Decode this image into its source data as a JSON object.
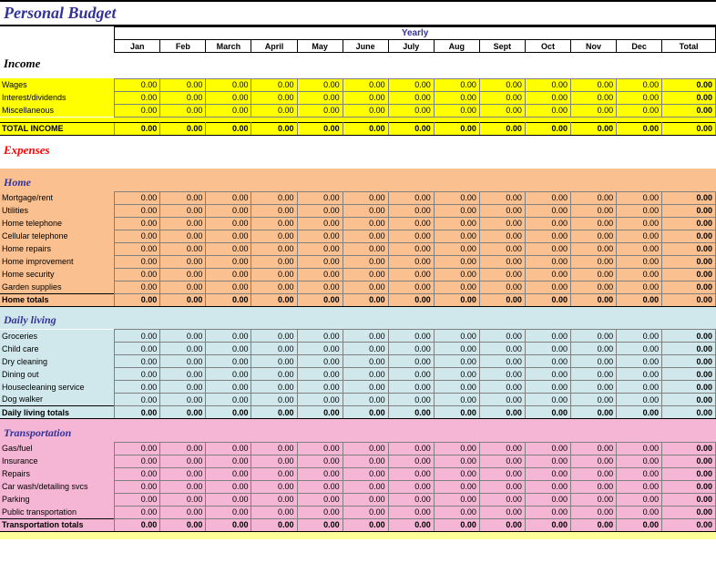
{
  "title": "Personal Budget",
  "yearly_label": "Yearly",
  "months": [
    "Jan",
    "Feb",
    "March",
    "April",
    "May",
    "June",
    "July",
    "Aug",
    "Sept",
    "Oct",
    "Nov",
    "Dec"
  ],
  "total_label": "Total",
  "colors": {
    "title_text": "#333399",
    "expenses_text": "#ff0000",
    "income_bg": "#ffff00",
    "home_bg": "#fac090",
    "daily_bg": "#d0e8ec",
    "transport_bg": "#f5b5d4",
    "cell_border": "#808080"
  },
  "income": {
    "title": "Income",
    "rows": [
      {
        "label": "Wages",
        "vals": [
          "0.00",
          "0.00",
          "0.00",
          "0.00",
          "0.00",
          "0.00",
          "0.00",
          "0.00",
          "0.00",
          "0.00",
          "0.00",
          "0.00"
        ],
        "total": "0.00"
      },
      {
        "label": "Interest/dividends",
        "vals": [
          "0.00",
          "0.00",
          "0.00",
          "0.00",
          "0.00",
          "0.00",
          "0.00",
          "0.00",
          "0.00",
          "0.00",
          "0.00",
          "0.00"
        ],
        "total": "0.00"
      },
      {
        "label": "Miscellaneous",
        "vals": [
          "0.00",
          "0.00",
          "0.00",
          "0.00",
          "0.00",
          "0.00",
          "0.00",
          "0.00",
          "0.00",
          "0.00",
          "0.00",
          "0.00"
        ],
        "total": "0.00"
      }
    ],
    "totals": {
      "label": "TOTAL INCOME",
      "vals": [
        "0.00",
        "0.00",
        "0.00",
        "0.00",
        "0.00",
        "0.00",
        "0.00",
        "0.00",
        "0.00",
        "0.00",
        "0.00",
        "0.00"
      ],
      "total": "0.00"
    }
  },
  "expenses_title": "Expenses",
  "home": {
    "title": "Home",
    "rows": [
      {
        "label": "Mortgage/rent",
        "vals": [
          "0.00",
          "0.00",
          "0.00",
          "0.00",
          "0.00",
          "0.00",
          "0.00",
          "0.00",
          "0.00",
          "0.00",
          "0.00",
          "0.00"
        ],
        "total": "0.00"
      },
      {
        "label": "Utilities",
        "vals": [
          "0.00",
          "0.00",
          "0.00",
          "0.00",
          "0.00",
          "0.00",
          "0.00",
          "0.00",
          "0.00",
          "0.00",
          "0.00",
          "0.00"
        ],
        "total": "0.00"
      },
      {
        "label": "Home telephone",
        "vals": [
          "0.00",
          "0.00",
          "0.00",
          "0.00",
          "0.00",
          "0.00",
          "0.00",
          "0.00",
          "0.00",
          "0.00",
          "0.00",
          "0.00"
        ],
        "total": "0.00"
      },
      {
        "label": "Cellular telephone",
        "vals": [
          "0.00",
          "0.00",
          "0.00",
          "0.00",
          "0.00",
          "0.00",
          "0.00",
          "0.00",
          "0.00",
          "0.00",
          "0.00",
          "0.00"
        ],
        "total": "0.00"
      },
      {
        "label": "Home repairs",
        "vals": [
          "0.00",
          "0.00",
          "0.00",
          "0.00",
          "0.00",
          "0.00",
          "0.00",
          "0.00",
          "0.00",
          "0.00",
          "0.00",
          "0.00"
        ],
        "total": "0.00"
      },
      {
        "label": "Home improvement",
        "vals": [
          "0.00",
          "0.00",
          "0.00",
          "0.00",
          "0.00",
          "0.00",
          "0.00",
          "0.00",
          "0.00",
          "0.00",
          "0.00",
          "0.00"
        ],
        "total": "0.00"
      },
      {
        "label": "Home security",
        "vals": [
          "0.00",
          "0.00",
          "0.00",
          "0.00",
          "0.00",
          "0.00",
          "0.00",
          "0.00",
          "0.00",
          "0.00",
          "0.00",
          "0.00"
        ],
        "total": "0.00"
      },
      {
        "label": "Garden supplies",
        "vals": [
          "0.00",
          "0.00",
          "0.00",
          "0.00",
          "0.00",
          "0.00",
          "0.00",
          "0.00",
          "0.00",
          "0.00",
          "0.00",
          "0.00"
        ],
        "total": "0.00"
      }
    ],
    "totals": {
      "label": "Home totals",
      "vals": [
        "0.00",
        "0.00",
        "0.00",
        "0.00",
        "0.00",
        "0.00",
        "0.00",
        "0.00",
        "0.00",
        "0.00",
        "0.00",
        "0.00"
      ],
      "total": "0.00"
    }
  },
  "daily": {
    "title": "Daily living",
    "rows": [
      {
        "label": "Groceries",
        "vals": [
          "0.00",
          "0.00",
          "0.00",
          "0.00",
          "0.00",
          "0.00",
          "0.00",
          "0.00",
          "0.00",
          "0.00",
          "0.00",
          "0.00"
        ],
        "total": "0.00"
      },
      {
        "label": "Child care",
        "vals": [
          "0.00",
          "0.00",
          "0.00",
          "0.00",
          "0.00",
          "0.00",
          "0.00",
          "0.00",
          "0.00",
          "0.00",
          "0.00",
          "0.00"
        ],
        "total": "0.00"
      },
      {
        "label": "Dry cleaning",
        "vals": [
          "0.00",
          "0.00",
          "0.00",
          "0.00",
          "0.00",
          "0.00",
          "0.00",
          "0.00",
          "0.00",
          "0.00",
          "0.00",
          "0.00"
        ],
        "total": "0.00"
      },
      {
        "label": "Dining out",
        "vals": [
          "0.00",
          "0.00",
          "0.00",
          "0.00",
          "0.00",
          "0.00",
          "0.00",
          "0.00",
          "0.00",
          "0.00",
          "0.00",
          "0.00"
        ],
        "total": "0.00"
      },
      {
        "label": "Housecleaning service",
        "vals": [
          "0.00",
          "0.00",
          "0.00",
          "0.00",
          "0.00",
          "0.00",
          "0.00",
          "0.00",
          "0.00",
          "0.00",
          "0.00",
          "0.00"
        ],
        "total": "0.00"
      },
      {
        "label": "Dog walker",
        "vals": [
          "0.00",
          "0.00",
          "0.00",
          "0.00",
          "0.00",
          "0.00",
          "0.00",
          "0.00",
          "0.00",
          "0.00",
          "0.00",
          "0.00"
        ],
        "total": "0.00"
      }
    ],
    "totals": {
      "label": "Daily living totals",
      "vals": [
        "0.00",
        "0.00",
        "0.00",
        "0.00",
        "0.00",
        "0.00",
        "0.00",
        "0.00",
        "0.00",
        "0.00",
        "0.00",
        "0.00"
      ],
      "total": "0.00"
    }
  },
  "transport": {
    "title": "Transportation",
    "rows": [
      {
        "label": "Gas/fuel",
        "vals": [
          "0.00",
          "0.00",
          "0.00",
          "0.00",
          "0.00",
          "0.00",
          "0.00",
          "0.00",
          "0.00",
          "0.00",
          "0.00",
          "0.00"
        ],
        "total": "0.00"
      },
      {
        "label": "Insurance",
        "vals": [
          "0.00",
          "0.00",
          "0.00",
          "0.00",
          "0.00",
          "0.00",
          "0.00",
          "0.00",
          "0.00",
          "0.00",
          "0.00",
          "0.00"
        ],
        "total": "0.00"
      },
      {
        "label": "Repairs",
        "vals": [
          "0.00",
          "0.00",
          "0.00",
          "0.00",
          "0.00",
          "0.00",
          "0.00",
          "0.00",
          "0.00",
          "0.00",
          "0.00",
          "0.00"
        ],
        "total": "0.00"
      },
      {
        "label": "Car wash/detailing svcs",
        "vals": [
          "0.00",
          "0.00",
          "0.00",
          "0.00",
          "0.00",
          "0.00",
          "0.00",
          "0.00",
          "0.00",
          "0.00",
          "0.00",
          "0.00"
        ],
        "total": "0.00"
      },
      {
        "label": "Parking",
        "vals": [
          "0.00",
          "0.00",
          "0.00",
          "0.00",
          "0.00",
          "0.00",
          "0.00",
          "0.00",
          "0.00",
          "0.00",
          "0.00",
          "0.00"
        ],
        "total": "0.00"
      },
      {
        "label": "Public transportation",
        "vals": [
          "0.00",
          "0.00",
          "0.00",
          "0.00",
          "0.00",
          "0.00",
          "0.00",
          "0.00",
          "0.00",
          "0.00",
          "0.00",
          "0.00"
        ],
        "total": "0.00"
      }
    ],
    "totals": {
      "label": "Transportation totals",
      "vals": [
        "0.00",
        "0.00",
        "0.00",
        "0.00",
        "0.00",
        "0.00",
        "0.00",
        "0.00",
        "0.00",
        "0.00",
        "0.00",
        "0.00"
      ],
      "total": "0.00"
    }
  }
}
